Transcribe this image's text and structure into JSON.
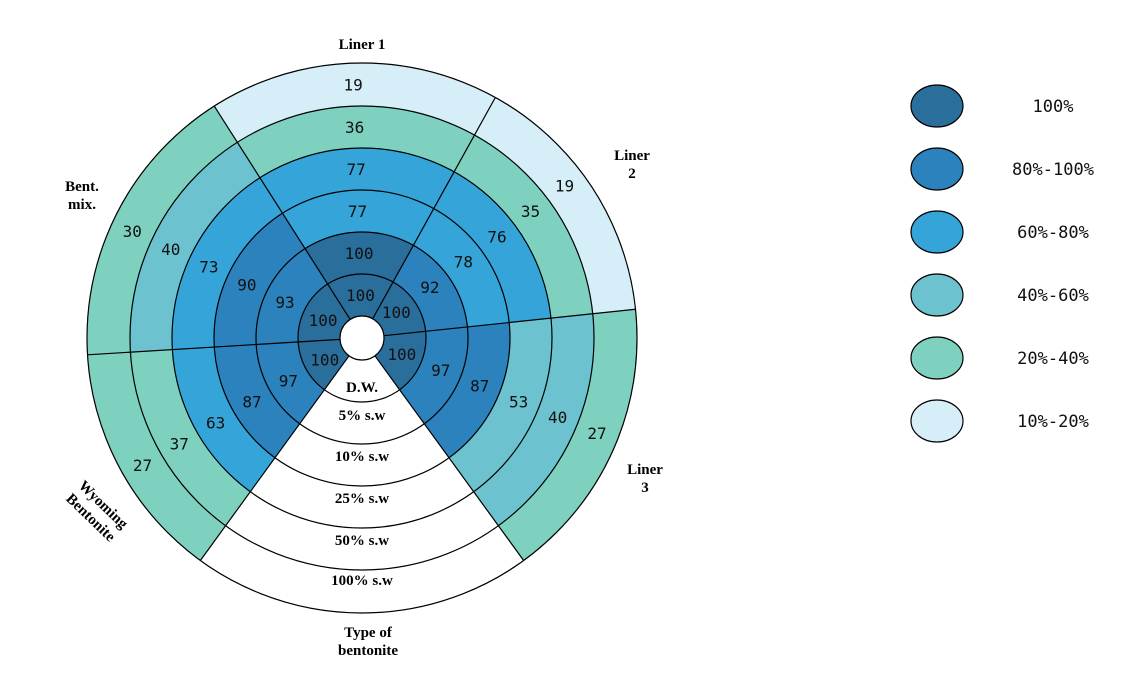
{
  "chart_data": {
    "type": "polar-heatmap",
    "center_label": "D.W.",
    "rings": [
      "D.W.",
      "5% s.w",
      "10% s.w",
      "25% s.w",
      "50% s.w",
      "100% s.w"
    ],
    "axis_label": "Type of bentonite",
    "sectors": [
      {
        "name": "Bent. mix.",
        "values": [
          100,
          93,
          90,
          73,
          40,
          30
        ]
      },
      {
        "name": "Liner 1",
        "values": [
          100,
          100,
          77,
          77,
          36,
          19
        ]
      },
      {
        "name": "Liner 2",
        "values": [
          100,
          92,
          78,
          76,
          35,
          19
        ]
      },
      {
        "name": "Liner 3",
        "values": [
          100,
          97,
          87,
          53,
          40,
          27
        ]
      },
      {
        "name": "Wyoming Bentonite",
        "values": [
          100,
          97,
          87,
          63,
          37,
          27
        ]
      }
    ],
    "legend": [
      {
        "label": "100%",
        "color": "#2a6e9c"
      },
      {
        "label": "80%-100%",
        "color": "#2c82bd"
      },
      {
        "label": "60%-80%",
        "color": "#35a5d9"
      },
      {
        "label": "40%-60%",
        "color": "#6cc3cf"
      },
      {
        "label": "20%-40%",
        "color": "#7fd1bf"
      },
      {
        "label": "10%-20%",
        "color": "#d6eef7"
      }
    ]
  }
}
